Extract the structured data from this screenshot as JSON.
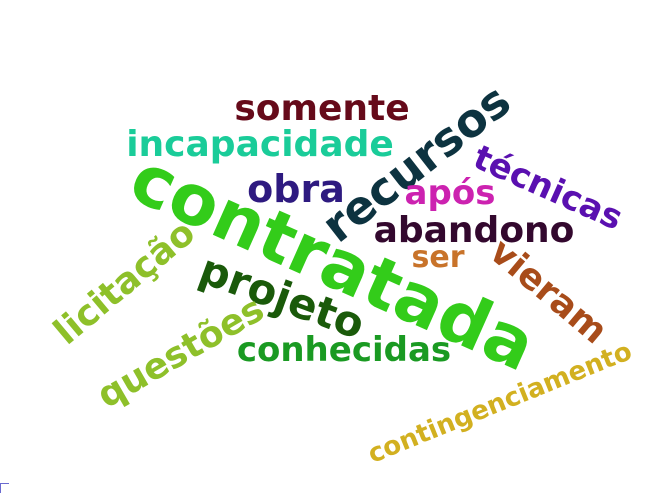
{
  "word_cloud": {
    "words": [
      {
        "id": "contratada",
        "text": "contratada",
        "color": "#33cc1a",
        "rotation_deg": 24
      },
      {
        "id": "recursos",
        "text": "recursos",
        "color": "#0d3340",
        "rotation_deg": -38
      },
      {
        "id": "somente",
        "text": "somente",
        "color": "#660a1a",
        "rotation_deg": 0
      },
      {
        "id": "incapacidade",
        "text": "incapacidade",
        "color": "#1acc99",
        "rotation_deg": 0
      },
      {
        "id": "tecnicas",
        "text": "técnicas",
        "color": "#5a10b0",
        "rotation_deg": 24
      },
      {
        "id": "obra",
        "text": "obra",
        "color": "#2e1a80",
        "rotation_deg": 0
      },
      {
        "id": "apos",
        "text": "após",
        "color": "#cc22b0",
        "rotation_deg": 0
      },
      {
        "id": "abandono",
        "text": "abandono",
        "color": "#33082e",
        "rotation_deg": 0
      },
      {
        "id": "ser",
        "text": "ser",
        "color": "#c8732a",
        "rotation_deg": 0
      },
      {
        "id": "vieram",
        "text": "vieram",
        "color": "#a84c1a",
        "rotation_deg": 40
      },
      {
        "id": "licitacao",
        "text": "licitação",
        "color": "#8ec02a",
        "rotation_deg": -40
      },
      {
        "id": "projeto",
        "text": "projeto",
        "color": "#1a5a0a",
        "rotation_deg": 20
      },
      {
        "id": "questoes",
        "text": "questões",
        "color": "#8ec02a",
        "rotation_deg": -30
      },
      {
        "id": "conhecidas",
        "text": "conhecidas",
        "color": "#1a9a22",
        "rotation_deg": 0
      },
      {
        "id": "contingenciamento",
        "text": "contingenciamento",
        "color": "#d2b020",
        "rotation_deg": -22
      }
    ]
  }
}
